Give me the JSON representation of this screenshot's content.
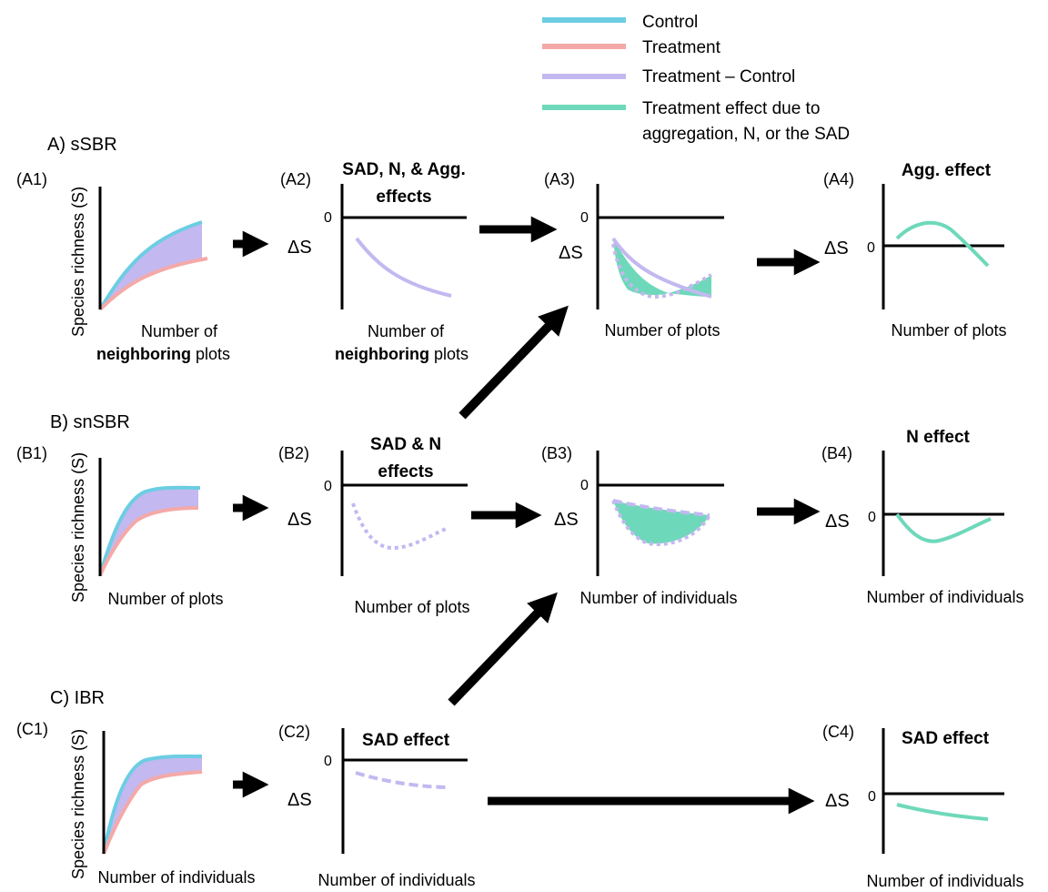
{
  "colors": {
    "control": "#6ccde3",
    "treatment": "#f4a9a8",
    "difference": "#c3b8f0",
    "effect": "#6ed8ba",
    "arrow": "#000000"
  },
  "legend": {
    "control": "Control",
    "treatment": "Treatment",
    "difference": "Treatment – Control",
    "effect_line1": "Treatment effect due to",
    "effect_line2": "aggregation, N, or the SAD"
  },
  "common": {
    "delta_s": "ΔS",
    "zero": "0",
    "y_axis": "Species richness (S)"
  },
  "rows": {
    "A": {
      "section": "A)  sSBR",
      "p1": {
        "id": "(A1)",
        "x_line1": "Number of",
        "x_bold": "neighboring",
        "x_rest": " plots"
      },
      "p2": {
        "id": "(A2)",
        "title_line1": "SAD, N, & Agg.",
        "title_line2": "effects",
        "x_line1": "Number of",
        "x_bold": "neighboring",
        "x_rest": " plots"
      },
      "p3": {
        "id": "(A3)",
        "x_label": "Number of plots"
      },
      "p4": {
        "id": "(A4)",
        "title": "Agg. effect",
        "x_label": "Number of plots"
      }
    },
    "B": {
      "section": "B) snSBR",
      "p1": {
        "id": "(B1)",
        "x_label": "Number of plots"
      },
      "p2": {
        "id": "(B2)",
        "title_line1": "SAD & N",
        "title_line2": "effects",
        "x_label": "Number of plots"
      },
      "p3": {
        "id": "(B3)",
        "x_label": "Number of individuals"
      },
      "p4": {
        "id": "(B4)",
        "title": "N effect",
        "x_label": "Number of individuals"
      }
    },
    "C": {
      "section": "C) IBR",
      "p1": {
        "id": "(C1)",
        "x_label": "Number of individuals"
      },
      "p2": {
        "id": "(C2)",
        "title": "SAD effect",
        "x_label": "Number of individuals"
      },
      "p4": {
        "id": "(C4)",
        "title": "SAD effect",
        "x_label": "Number of individuals"
      }
    }
  }
}
